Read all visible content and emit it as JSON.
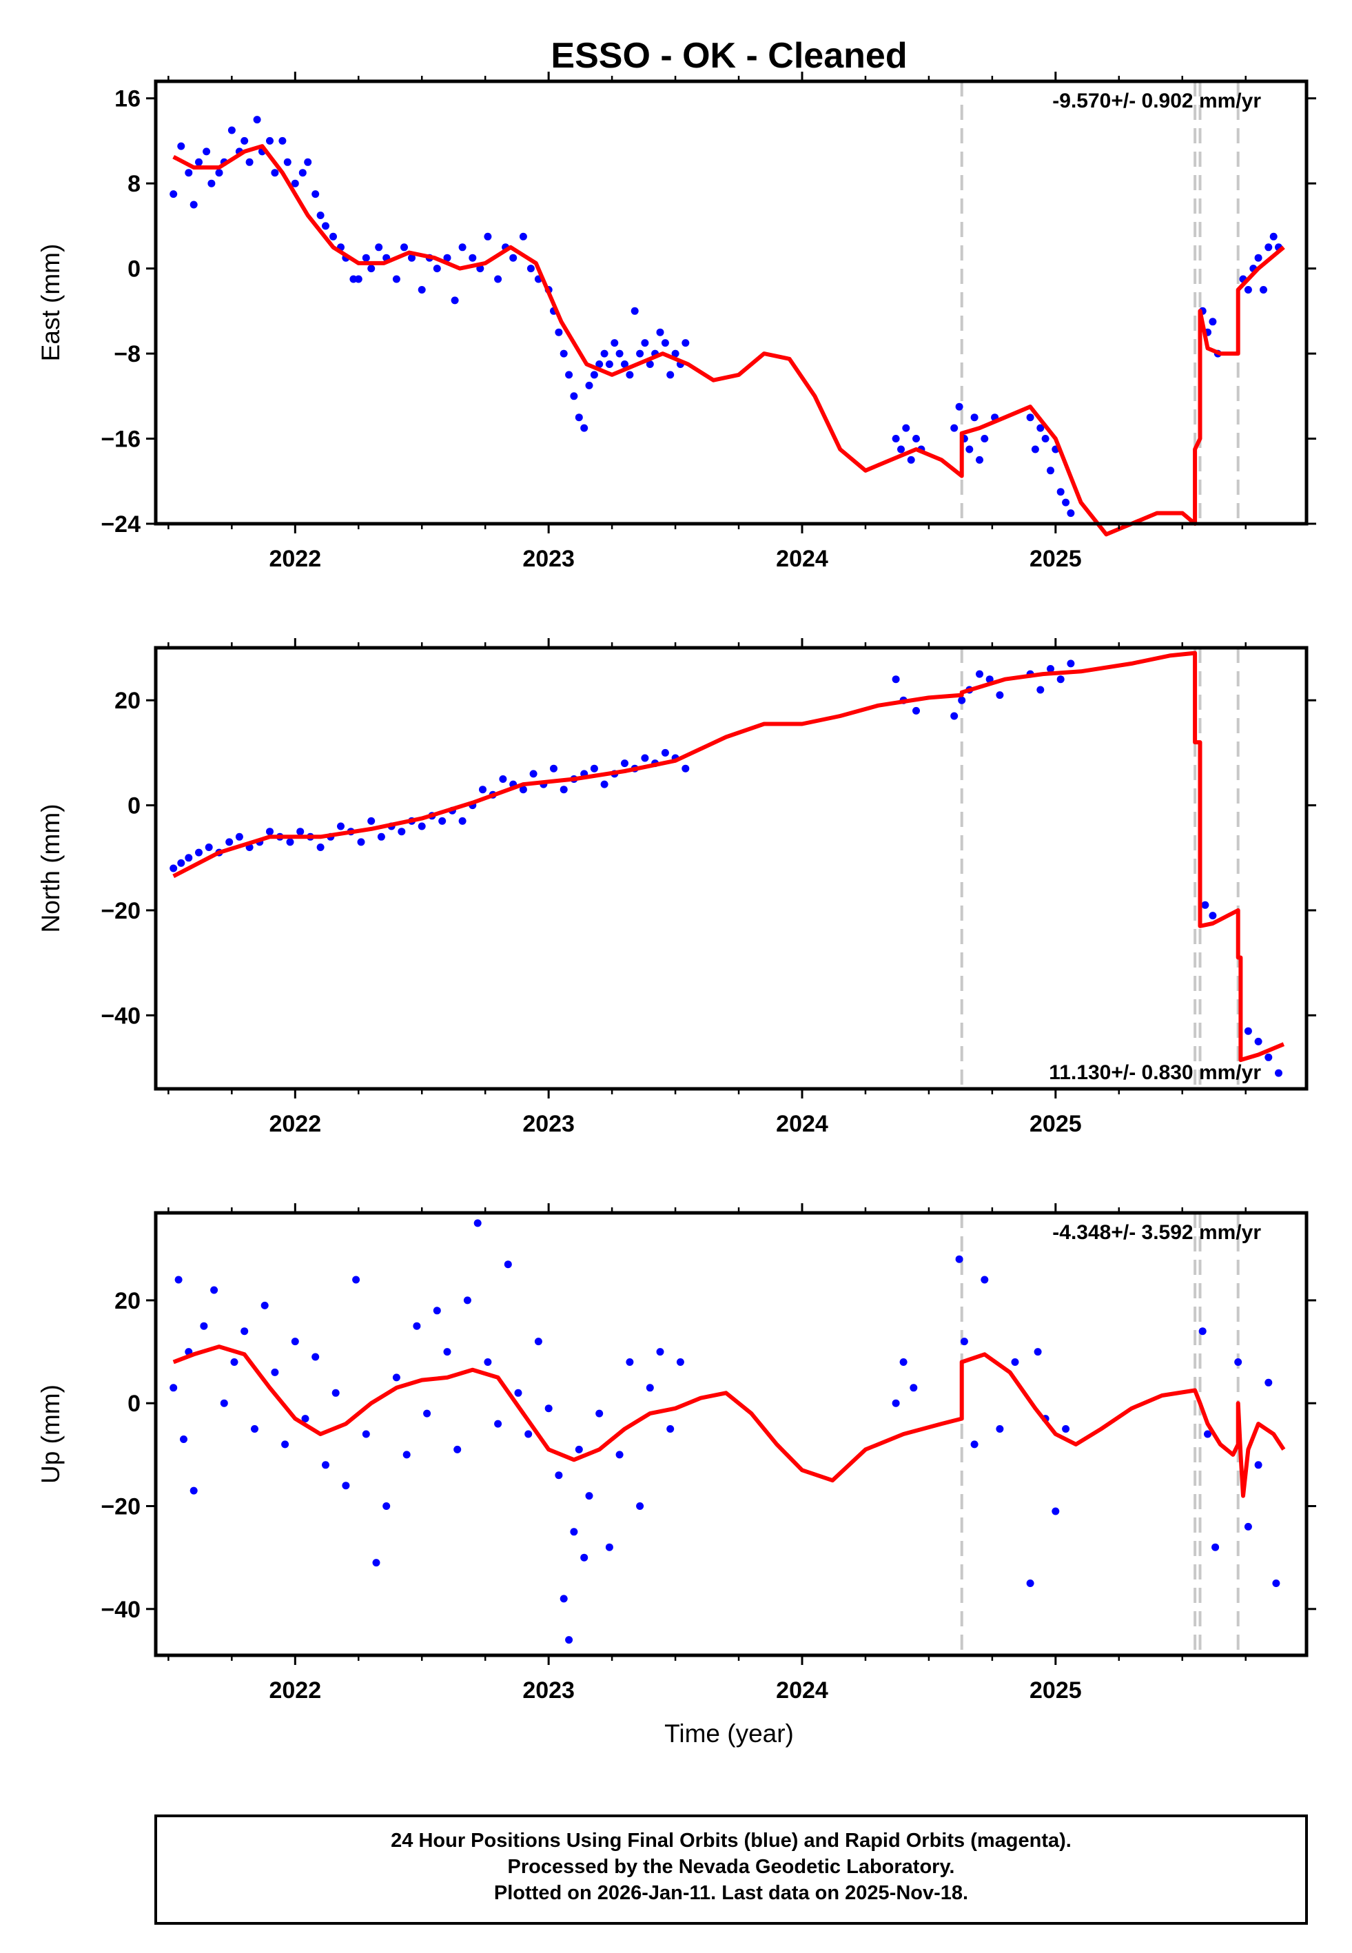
{
  "title": "ESSO  - OK - Cleaned",
  "chart_data": [
    {
      "type": "scatter",
      "ylabel": "East (mm)",
      "xlabel": "",
      "xlim": [
        2021.45,
        2025.99
      ],
      "ylim": [
        -24,
        17.6
      ],
      "yticks": [
        16,
        8,
        0,
        -8,
        -16,
        -24
      ],
      "yticklabels": [
        "16",
        "8",
        "0",
        "−8",
        "−16",
        "−24"
      ],
      "xticks": [
        2022,
        2023,
        2024,
        2025
      ],
      "xticklabels": [
        "2022",
        "2023",
        "2024",
        "2025"
      ],
      "rate_label": "-9.570+/- 0.902 mm/yr",
      "rate_position": "top-right",
      "offsets": [
        2024.63,
        2025.55,
        2025.57,
        2025.72
      ],
      "series": [
        {
          "name": "24 Hour Positions (Final Orbits)",
          "color": "#0000ff",
          "style": "points",
          "x": [
            2021.52,
            2021.55,
            2021.58,
            2021.6,
            2021.62,
            2021.65,
            2021.67,
            2021.7,
            2021.72,
            2021.75,
            2021.78,
            2021.8,
            2021.82,
            2021.85,
            2021.87,
            2021.9,
            2021.92,
            2021.95,
            2021.97,
            2022.0,
            2022.03,
            2022.05,
            2022.08,
            2022.1,
            2022.12,
            2022.15,
            2022.18,
            2022.2,
            2022.23,
            2022.25,
            2022.28,
            2022.3,
            2022.33,
            2022.36,
            2022.4,
            2022.43,
            2022.46,
            2022.5,
            2022.53,
            2022.56,
            2022.6,
            2022.63,
            2022.66,
            2022.7,
            2022.73,
            2022.76,
            2022.8,
            2022.83,
            2022.86,
            2022.9,
            2022.93,
            2022.96,
            2023.0,
            2023.02,
            2023.04,
            2023.06,
            2023.08,
            2023.1,
            2023.12,
            2023.14,
            2023.16,
            2023.18,
            2023.2,
            2023.22,
            2023.24,
            2023.26,
            2023.28,
            2023.3,
            2023.32,
            2023.34,
            2023.36,
            2023.38,
            2023.4,
            2023.42,
            2023.44,
            2023.46,
            2023.48,
            2023.5,
            2023.52,
            2023.54,
            2024.37,
            2024.39,
            2024.41,
            2024.43,
            2024.45,
            2024.47,
            2024.6,
            2024.62,
            2024.64,
            2024.66,
            2024.68,
            2024.7,
            2024.72,
            2024.76,
            2024.9,
            2024.92,
            2024.94,
            2024.96,
            2024.98,
            2025.0,
            2025.02,
            2025.04,
            2025.06,
            2025.58,
            2025.6,
            2025.62,
            2025.64,
            2025.74,
            2025.76,
            2025.78,
            2025.8,
            2025.82,
            2025.84,
            2025.86,
            2025.88
          ],
          "y": [
            7,
            11.5,
            9,
            6,
            10,
            11,
            8,
            9,
            10,
            13,
            11,
            12,
            10,
            14,
            11,
            12,
            9,
            12,
            10,
            8,
            9,
            10,
            7,
            5,
            4,
            3,
            2,
            1,
            -1,
            -1,
            1,
            0,
            2,
            1,
            -1,
            2,
            1,
            -2,
            1,
            0,
            1,
            -3,
            2,
            1,
            0,
            3,
            -1,
            2,
            1,
            3,
            0,
            -1,
            -2,
            -4,
            -6,
            -8,
            -10,
            -12,
            -14,
            -15,
            -11,
            -10,
            -9,
            -8,
            -9,
            -7,
            -8,
            -9,
            -10,
            -4,
            -8,
            -7,
            -9,
            -8,
            -6,
            -7,
            -10,
            -8,
            -9,
            -7,
            -16,
            -17,
            -15,
            -18,
            -16,
            -17,
            -15,
            -13,
            -16,
            -17,
            -14,
            -18,
            -16,
            -14,
            -14,
            -17,
            -15,
            -16,
            -19,
            -17,
            -21,
            -22,
            -23,
            -4,
            -6,
            -5,
            -8,
            -1,
            -2,
            0,
            1,
            -2,
            2,
            3,
            2
          ]
        },
        {
          "name": "Model",
          "color": "#ff0000",
          "style": "line",
          "x": [
            2021.52,
            2021.6,
            2021.7,
            2021.8,
            2021.87,
            2021.95,
            2022.05,
            2022.15,
            2022.25,
            2022.35,
            2022.45,
            2022.55,
            2022.65,
            2022.75,
            2022.85,
            2022.95,
            2023.05,
            2023.15,
            2023.25,
            2023.35,
            2023.45,
            2023.55,
            2023.65,
            2023.75,
            2023.85,
            2023.95,
            2024.05,
            2024.15,
            2024.25,
            2024.35,
            2024.45,
            2024.55,
            2024.63,
            2024.63,
            2024.7,
            2024.8,
            2024.9,
            2025.0,
            2025.1,
            2025.2,
            2025.3,
            2025.4,
            2025.5,
            2025.55,
            2025.55,
            2025.57,
            2025.57,
            2025.6,
            2025.65,
            2025.72,
            2025.72,
            2025.8,
            2025.9
          ],
          "y": [
            10.5,
            9.5,
            9.5,
            11,
            11.5,
            9,
            5,
            2,
            0.5,
            0.5,
            1.5,
            1,
            0,
            0.5,
            2,
            0.5,
            -5,
            -9,
            -10,
            -9,
            -8,
            -9,
            -10.5,
            -10,
            -8,
            -8.5,
            -12,
            -17,
            -19,
            -18,
            -17,
            -18,
            -19.5,
            -15.5,
            -15,
            -14,
            -13,
            -16,
            -22,
            -25,
            -24,
            -23,
            -23,
            -24,
            -17,
            -16,
            -4,
            -7.5,
            -8,
            -8,
            -2,
            0,
            2
          ]
        }
      ]
    },
    {
      "type": "scatter",
      "ylabel": "North (mm)",
      "xlabel": "",
      "xlim": [
        2021.45,
        2025.99
      ],
      "ylim": [
        -54,
        30
      ],
      "yticks": [
        20,
        0,
        -20,
        -40
      ],
      "yticklabels": [
        "20",
        "0",
        "−20",
        "−40"
      ],
      "xticks": [
        2022,
        2023,
        2024,
        2025
      ],
      "xticklabels": [
        "2022",
        "2023",
        "2024",
        "2025"
      ],
      "rate_label": "11.130+/- 0.830 mm/yr",
      "rate_position": "bottom-right",
      "offsets": [
        2024.63,
        2025.55,
        2025.57,
        2025.72
      ],
      "series": [
        {
          "name": "24 Hour Positions (Final Orbits)",
          "color": "#0000ff",
          "style": "points",
          "x": [
            2021.52,
            2021.55,
            2021.58,
            2021.62,
            2021.66,
            2021.7,
            2021.74,
            2021.78,
            2021.82,
            2021.86,
            2021.9,
            2021.94,
            2021.98,
            2022.02,
            2022.06,
            2022.1,
            2022.14,
            2022.18,
            2022.22,
            2022.26,
            2022.3,
            2022.34,
            2022.38,
            2022.42,
            2022.46,
            2022.5,
            2022.54,
            2022.58,
            2022.62,
            2022.66,
            2022.7,
            2022.74,
            2022.78,
            2022.82,
            2022.86,
            2022.9,
            2022.94,
            2022.98,
            2023.02,
            2023.06,
            2023.1,
            2023.14,
            2023.18,
            2023.22,
            2023.26,
            2023.3,
            2023.34,
            2023.38,
            2023.42,
            2023.46,
            2023.5,
            2023.54,
            2024.37,
            2024.4,
            2024.45,
            2024.6,
            2024.63,
            2024.66,
            2024.7,
            2024.74,
            2024.78,
            2024.9,
            2024.94,
            2024.98,
            2025.02,
            2025.06,
            2025.59,
            2025.62,
            2025.76,
            2025.8,
            2025.84,
            2025.88
          ],
          "y": [
            -12,
            -11,
            -10,
            -9,
            -8,
            -9,
            -7,
            -6,
            -8,
            -7,
            -5,
            -6,
            -7,
            -5,
            -6,
            -8,
            -6,
            -4,
            -5,
            -7,
            -3,
            -6,
            -4,
            -5,
            -3,
            -4,
            -2,
            -3,
            -1,
            -3,
            0,
            3,
            2,
            5,
            4,
            3,
            6,
            4,
            7,
            3,
            5,
            6,
            7,
            4,
            6,
            8,
            7,
            9,
            8,
            10,
            9,
            7,
            24,
            20,
            18,
            17,
            20,
            22,
            25,
            24,
            21,
            25,
            22,
            26,
            24,
            27,
            -19,
            -21,
            -43,
            -45,
            -48,
            -51
          ]
        },
        {
          "name": "Model",
          "color": "#ff0000",
          "style": "line",
          "x": [
            2021.52,
            2021.7,
            2021.9,
            2022.1,
            2022.3,
            2022.5,
            2022.7,
            2022.9,
            2023.1,
            2023.3,
            2023.5,
            2023.7,
            2023.85,
            2024.0,
            2024.15,
            2024.3,
            2024.5,
            2024.63,
            2024.63,
            2024.8,
            2024.95,
            2025.1,
            2025.3,
            2025.45,
            2025.55,
            2025.55,
            2025.57,
            2025.57,
            2025.62,
            2025.72,
            2025.72,
            2025.73,
            2025.73,
            2025.8,
            2025.9
          ],
          "y": [
            -13.5,
            -9,
            -6,
            -6,
            -4.5,
            -2.5,
            0.5,
            4,
            5,
            6.5,
            8.5,
            13,
            15.5,
            15.5,
            17,
            19,
            20.5,
            21,
            21.5,
            24,
            25,
            25.5,
            27,
            28.5,
            29,
            12,
            12,
            -23,
            -22.5,
            -20,
            -29,
            -29,
            -48.5,
            -47.5,
            -45.5
          ]
        }
      ]
    },
    {
      "type": "scatter",
      "ylabel": "Up (mm)",
      "xlabel": "Time (year)",
      "xlim": [
        2021.45,
        2025.99
      ],
      "ylim": [
        -49,
        37
      ],
      "yticks": [
        20,
        0,
        -20,
        -40
      ],
      "yticklabels": [
        "20",
        "0",
        "−20",
        "−40"
      ],
      "xticks": [
        2022,
        2023,
        2024,
        2025
      ],
      "xticklabels": [
        "2022",
        "2023",
        "2024",
        "2025"
      ],
      "rate_label": "-4.348+/- 3.592 mm/yr",
      "rate_position": "top-right",
      "offsets": [
        2024.63,
        2025.55,
        2025.57,
        2025.72
      ],
      "series": [
        {
          "name": "24 Hour Positions (Final Orbits)",
          "color": "#0000ff",
          "style": "points",
          "x": [
            2021.52,
            2021.54,
            2021.56,
            2021.58,
            2021.6,
            2021.64,
            2021.68,
            2021.72,
            2021.76,
            2021.8,
            2021.84,
            2021.88,
            2021.92,
            2021.96,
            2022.0,
            2022.04,
            2022.08,
            2022.12,
            2022.16,
            2022.2,
            2022.24,
            2022.28,
            2022.32,
            2022.36,
            2022.4,
            2022.44,
            2022.48,
            2022.52,
            2022.56,
            2022.6,
            2022.64,
            2022.68,
            2022.72,
            2022.76,
            2022.8,
            2022.84,
            2022.88,
            2022.92,
            2022.96,
            2023.0,
            2023.04,
            2023.06,
            2023.08,
            2023.1,
            2023.12,
            2023.14,
            2023.16,
            2023.2,
            2023.24,
            2023.28,
            2023.32,
            2023.36,
            2023.4,
            2023.44,
            2023.48,
            2023.52,
            2024.37,
            2024.4,
            2024.44,
            2024.62,
            2024.64,
            2024.68,
            2024.72,
            2024.78,
            2024.84,
            2024.9,
            2024.93,
            2024.96,
            2025.0,
            2025.04,
            2025.58,
            2025.6,
            2025.63,
            2025.72,
            2025.76,
            2025.8,
            2025.84,
            2025.87
          ],
          "y": [
            3,
            24,
            -7,
            10,
            -17,
            15,
            22,
            0,
            8,
            14,
            -5,
            19,
            6,
            -8,
            12,
            -3,
            9,
            -12,
            2,
            -16,
            24,
            -6,
            -31,
            -20,
            5,
            -10,
            15,
            -2,
            18,
            10,
            -9,
            20,
            35,
            8,
            -4,
            27,
            2,
            -6,
            12,
            -1,
            -14,
            -38,
            -46,
            -25,
            -9,
            -30,
            -18,
            -2,
            -28,
            -10,
            8,
            -20,
            3,
            10,
            -5,
            8,
            0,
            8,
            3,
            28,
            12,
            -8,
            24,
            -5,
            8,
            -35,
            10,
            -3,
            -21,
            -5,
            14,
            -6,
            -28,
            8,
            -24,
            -12,
            4,
            -35
          ]
        },
        {
          "name": "Model",
          "color": "#ff0000",
          "style": "line",
          "x": [
            2021.52,
            2021.6,
            2021.7,
            2021.8,
            2021.9,
            2022.0,
            2022.1,
            2022.2,
            2022.3,
            2022.4,
            2022.5,
            2022.6,
            2022.7,
            2022.8,
            2022.9,
            2023.0,
            2023.1,
            2023.2,
            2023.3,
            2023.4,
            2023.5,
            2023.6,
            2023.7,
            2023.8,
            2023.9,
            2024.0,
            2024.12,
            2024.25,
            2024.4,
            2024.55,
            2024.63,
            2024.63,
            2024.72,
            2024.82,
            2024.92,
            2025.0,
            2025.08,
            2025.18,
            2025.3,
            2025.42,
            2025.55,
            2025.57,
            2025.6,
            2025.65,
            2025.7,
            2025.72,
            2025.72,
            2025.73,
            2025.74,
            2025.76,
            2025.8,
            2025.86,
            2025.9
          ],
          "y": [
            8,
            9.5,
            11,
            9.5,
            3,
            -3,
            -6,
            -4,
            0,
            3,
            4.5,
            5,
            6.5,
            5,
            -2,
            -9,
            -11,
            -9,
            -5,
            -2,
            -1,
            1,
            2,
            -2,
            -8,
            -13,
            -15,
            -9,
            -6,
            -4,
            -3,
            8,
            9.5,
            6,
            -1,
            -6,
            -8,
            -5,
            -1,
            1.5,
            2.5,
            0,
            -4,
            -8,
            -10,
            -8,
            0,
            -10,
            -18,
            -9,
            -4,
            -6,
            -9
          ]
        }
      ]
    }
  ],
  "caption": {
    "line1": "24 Hour Positions Using Final Orbits (blue) and Rapid Orbits (magenta).",
    "line2": "Processed by the Nevada Geodetic Laboratory.",
    "line3": "Plotted on 2026-Jan-11. Last data on 2025-Nov-18."
  },
  "colors": {
    "points": "#0000ff",
    "model": "#ff0000",
    "offsets": "#c8c8c8"
  }
}
